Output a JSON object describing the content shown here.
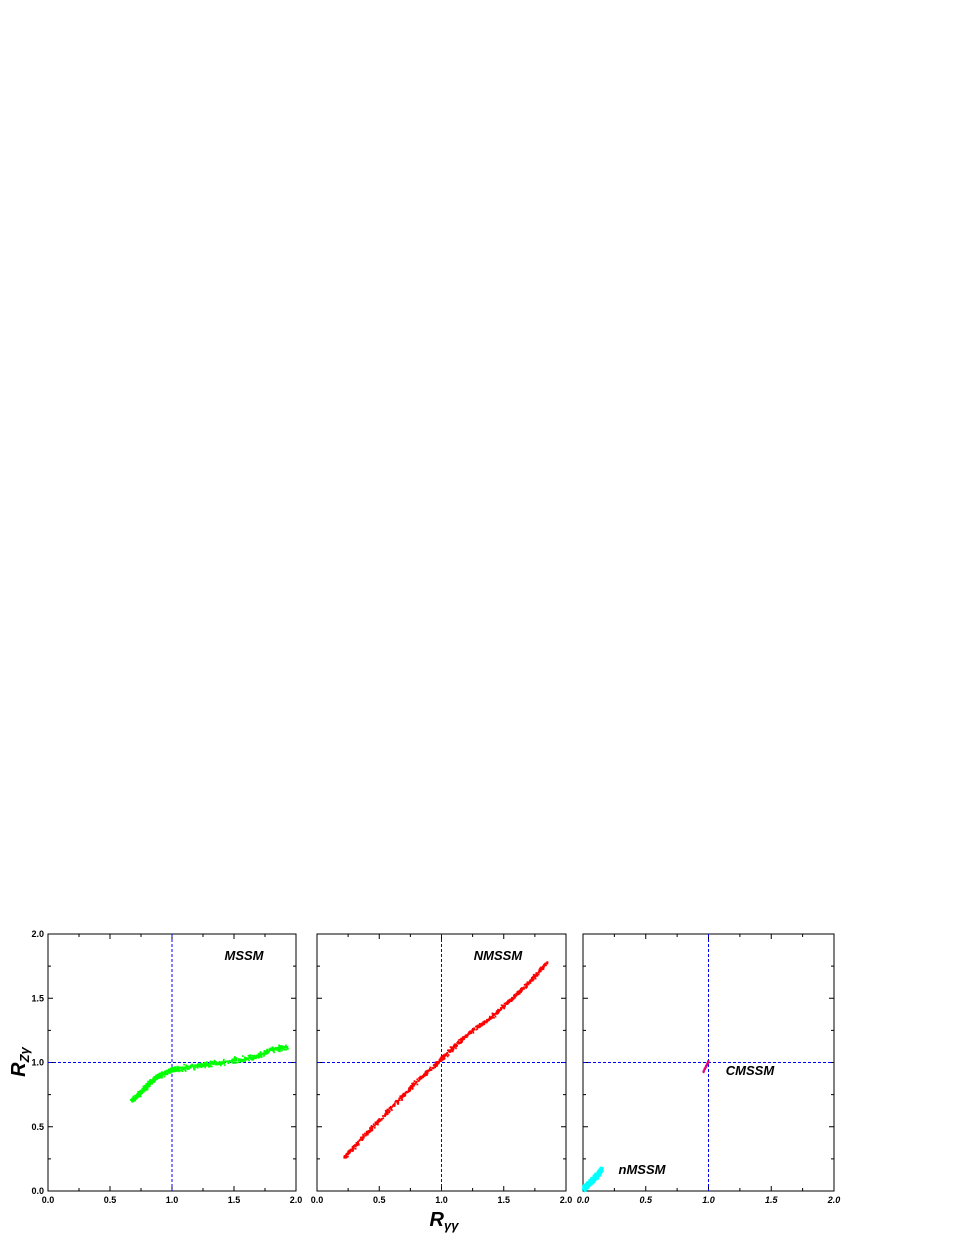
{
  "chart_data": [
    {
      "type": "scatter",
      "panel": "left",
      "annotation": "MSSM",
      "xlim": [
        0.0,
        2.0
      ],
      "ylim": [
        0.0,
        2.0
      ],
      "xticks": [
        "0.0",
        "0.5",
        "1.0",
        "1.5",
        "2.0"
      ],
      "yticks": [
        "0.0",
        "0.5",
        "1.0",
        "1.5",
        "2.0"
      ],
      "reference_lines": {
        "x": 1.0,
        "y": 1.0
      },
      "series": [
        {
          "color": "#00ff00",
          "region": "band",
          "points": [
            [
              0.68,
              0.7
            ],
            [
              0.75,
              0.77
            ],
            [
              0.82,
              0.84
            ],
            [
              0.9,
              0.9
            ],
            [
              1.0,
              0.94
            ],
            [
              1.1,
              0.96
            ],
            [
              1.25,
              0.98
            ],
            [
              1.4,
              1.0
            ],
            [
              1.55,
              1.02
            ],
            [
              1.7,
              1.05
            ],
            [
              1.8,
              1.1
            ],
            [
              1.93,
              1.12
            ]
          ]
        }
      ]
    },
    {
      "type": "scatter",
      "panel": "middle",
      "annotation": "NMSSM",
      "xlim": [
        0.0,
        2.0
      ],
      "ylim": [
        0.0,
        2.0
      ],
      "xticks": [
        "0.0",
        "0.5",
        "1.0",
        "1.5",
        "2.0"
      ],
      "reference_lines": {
        "x": 1.0,
        "y": 1.0
      },
      "series": [
        {
          "color": "#ff0000",
          "region": "band",
          "points": [
            [
              0.22,
              0.26
            ],
            [
              0.35,
              0.4
            ],
            [
              0.5,
              0.55
            ],
            [
              0.65,
              0.7
            ],
            [
              0.8,
              0.85
            ],
            [
              0.95,
              0.98
            ],
            [
              1.1,
              1.12
            ],
            [
              1.25,
              1.25
            ],
            [
              1.4,
              1.35
            ],
            [
              1.55,
              1.48
            ],
            [
              1.7,
              1.62
            ],
            [
              1.85,
              1.78
            ]
          ]
        }
      ]
    },
    {
      "type": "scatter",
      "panel": "right",
      "annotations": [
        "CMSSM",
        "nMSSM"
      ],
      "xlim": [
        0.0,
        2.0
      ],
      "ylim": [
        0.0,
        2.0
      ],
      "xticks": [
        "0.0",
        "0.5",
        "1.0",
        "1.5",
        "2.0"
      ],
      "reference_lines": {
        "x": 1.0,
        "y": 1.0
      },
      "series": [
        {
          "annotation": "CMSSM",
          "color": "#e6007e",
          "region": "cluster",
          "points": [
            [
              0.96,
              0.93
            ],
            [
              0.97,
              0.95
            ],
            [
              0.98,
              0.97
            ],
            [
              0.99,
              0.99
            ],
            [
              1.0,
              1.01
            ]
          ]
        },
        {
          "annotation": "nMSSM",
          "color": "#00ffff",
          "region": "band",
          "points": [
            [
              0.01,
              0.02
            ],
            [
              0.04,
              0.05
            ],
            [
              0.08,
              0.09
            ],
            [
              0.12,
              0.13
            ],
            [
              0.15,
              0.17
            ]
          ]
        }
      ]
    }
  ],
  "axes": {
    "ylabel": {
      "main": "R",
      "sub": "Zγ"
    },
    "xlabel": {
      "main": "R",
      "sub": "γγ"
    }
  },
  "colors": {
    "reference_line": "#0000ff",
    "frame": "#000000"
  }
}
